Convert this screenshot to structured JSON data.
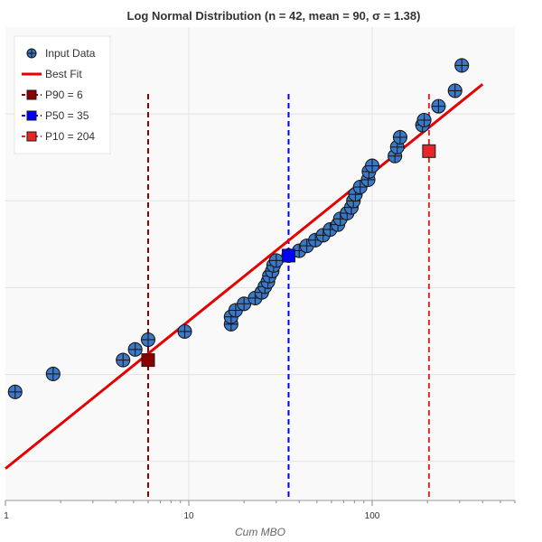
{
  "chart_data": {
    "type": "scatter",
    "title": "Log Normal Distribution (n = 42, mean = 90, σ = 1.38)",
    "xlabel": "Cum MBO",
    "ylabel": "",
    "x_scale": "log",
    "xlim": [
      1,
      600
    ],
    "x_ticks": [
      1,
      10,
      100
    ],
    "x_tick_labels": [
      "1",
      "10",
      "100"
    ],
    "y_scale": "normal-probability (z)",
    "ylim": [
      -3.0,
      2.8
    ],
    "grid": true,
    "legend_position": "top-left",
    "colors": {
      "input": "#3a78c9",
      "fit": "#e60000",
      "p90": "#8b0000",
      "p50": "#0000ff",
      "p10": "#e8262a"
    },
    "series": [
      {
        "name": "Input Data",
        "kind": "scatter",
        "points": [
          {
            "x": 1.13,
            "y": -1.67
          },
          {
            "x": 1.82,
            "y": -1.45
          },
          {
            "x": 4.38,
            "y": -1.28
          },
          {
            "x": 5.1,
            "y": -1.15
          },
          {
            "x": 6.0,
            "y": -1.03
          },
          {
            "x": 9.5,
            "y": -0.93
          },
          {
            "x": 17.0,
            "y": -0.84
          },
          {
            "x": 17.0,
            "y": -0.75
          },
          {
            "x": 18.0,
            "y": -0.67
          },
          {
            "x": 20.0,
            "y": -0.59
          },
          {
            "x": 23.0,
            "y": -0.52
          },
          {
            "x": 25.0,
            "y": -0.45
          },
          {
            "x": 26.0,
            "y": -0.38
          },
          {
            "x": 27.0,
            "y": -0.32
          },
          {
            "x": 27.5,
            "y": -0.25
          },
          {
            "x": 28.5,
            "y": -0.19
          },
          {
            "x": 29.0,
            "y": -0.12
          },
          {
            "x": 30.0,
            "y": -0.06
          },
          {
            "x": 35.0,
            "y": 0.0
          },
          {
            "x": 40.0,
            "y": 0.06
          },
          {
            "x": 44.0,
            "y": 0.12
          },
          {
            "x": 49.0,
            "y": 0.19
          },
          {
            "x": 54.0,
            "y": 0.25
          },
          {
            "x": 59.0,
            "y": 0.32
          },
          {
            "x": 65.0,
            "y": 0.38
          },
          {
            "x": 67.0,
            "y": 0.45
          },
          {
            "x": 73.0,
            "y": 0.52
          },
          {
            "x": 77.0,
            "y": 0.59
          },
          {
            "x": 79.0,
            "y": 0.67
          },
          {
            "x": 81.0,
            "y": 0.75
          },
          {
            "x": 86.0,
            "y": 0.84
          },
          {
            "x": 95.0,
            "y": 0.93
          },
          {
            "x": 96.0,
            "y": 1.03
          },
          {
            "x": 100.0,
            "y": 1.1
          },
          {
            "x": 133.0,
            "y": 1.22
          },
          {
            "x": 137.0,
            "y": 1.33
          },
          {
            "x": 142.0,
            "y": 1.45
          },
          {
            "x": 188.0,
            "y": 1.6
          },
          {
            "x": 192.0,
            "y": 1.66
          },
          {
            "x": 230.0,
            "y": 1.83
          },
          {
            "x": 283.0,
            "y": 2.02
          },
          {
            "x": 308.0,
            "y": 2.33
          }
        ]
      },
      {
        "name": "Best Fit",
        "kind": "line",
        "points": [
          {
            "x": 1.0,
            "y": -2.61
          },
          {
            "x": 400.0,
            "y": 2.1
          }
        ]
      },
      {
        "name": "P90 = 6",
        "kind": "marker-vline",
        "x": 6,
        "y": -1.28
      },
      {
        "name": "P50 = 35",
        "kind": "marker-vline",
        "x": 35,
        "y": 0.0
      },
      {
        "name": "P10 = 204",
        "kind": "marker-vline",
        "x": 204,
        "y": 1.28
      }
    ]
  }
}
